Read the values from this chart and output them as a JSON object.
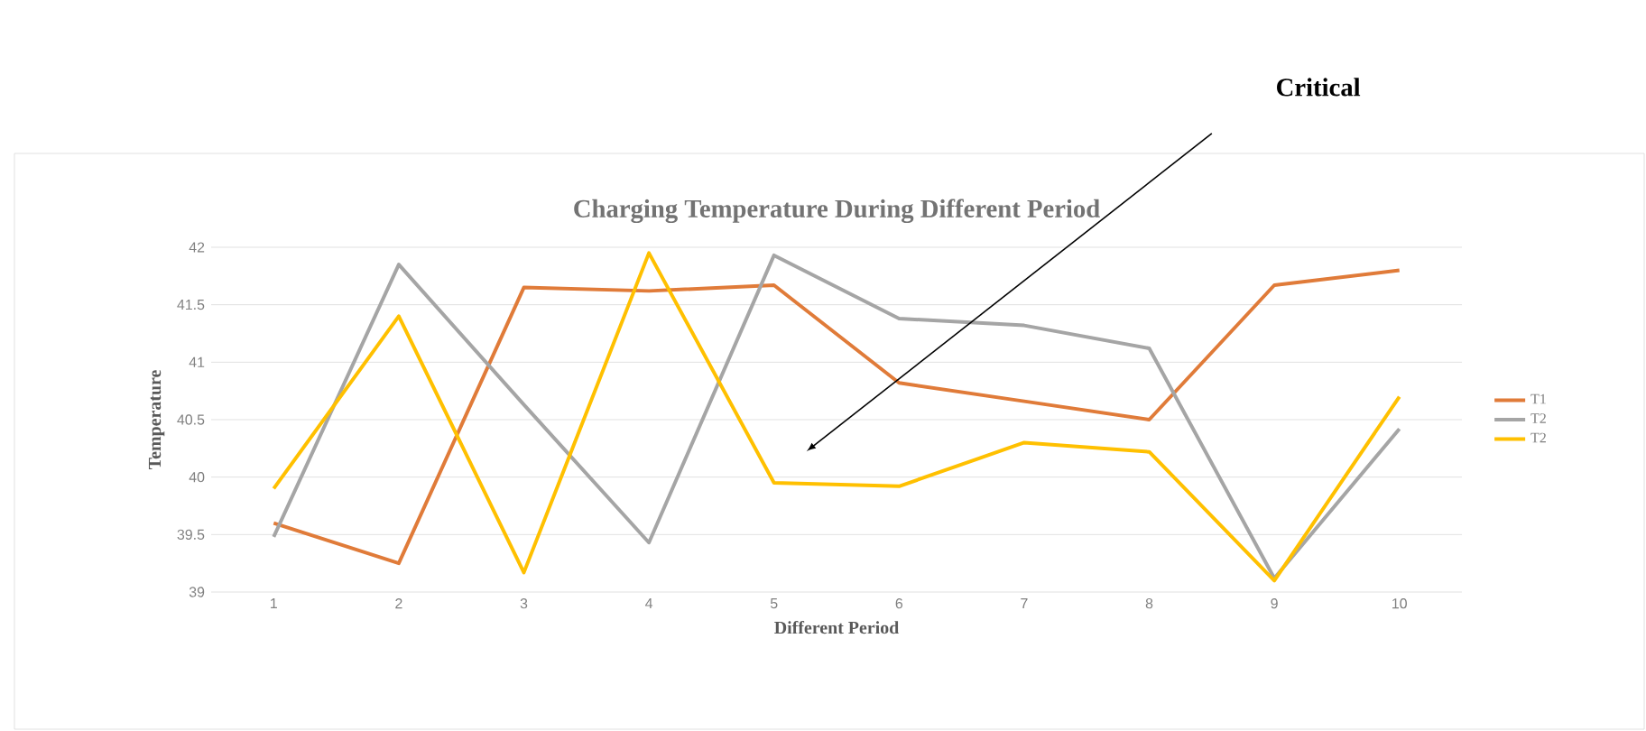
{
  "chart_data": {
    "type": "line",
    "title": "Charging Temperature  During Different Period",
    "xlabel": "Different Period",
    "ylabel": "Temperature",
    "categories": [
      "1",
      "2",
      "3",
      "4",
      "5",
      "6",
      "7",
      "8",
      "9",
      "10"
    ],
    "series": [
      {
        "name": "T1",
        "color": "#e07b39",
        "values": [
          39.6,
          39.25,
          41.65,
          41.62,
          41.67,
          40.82,
          40.66,
          40.5,
          41.67,
          41.8
        ]
      },
      {
        "name": "T2",
        "color": "#a5a5a5",
        "values": [
          39.48,
          41.85,
          40.63,
          39.43,
          41.93,
          41.38,
          41.32,
          41.12,
          39.12,
          40.42
        ]
      },
      {
        "name": "T2",
        "color": "#ffc000",
        "values": [
          39.9,
          41.4,
          39.17,
          41.95,
          39.95,
          39.92,
          40.3,
          40.22,
          39.1,
          40.7
        ]
      }
    ],
    "ylim": [
      39,
      42
    ],
    "yticks": [
      39,
      39.5,
      40,
      40.5,
      41,
      41.5,
      42
    ],
    "grid": "y",
    "legend": "right",
    "annotations": [
      "Critical"
    ]
  }
}
